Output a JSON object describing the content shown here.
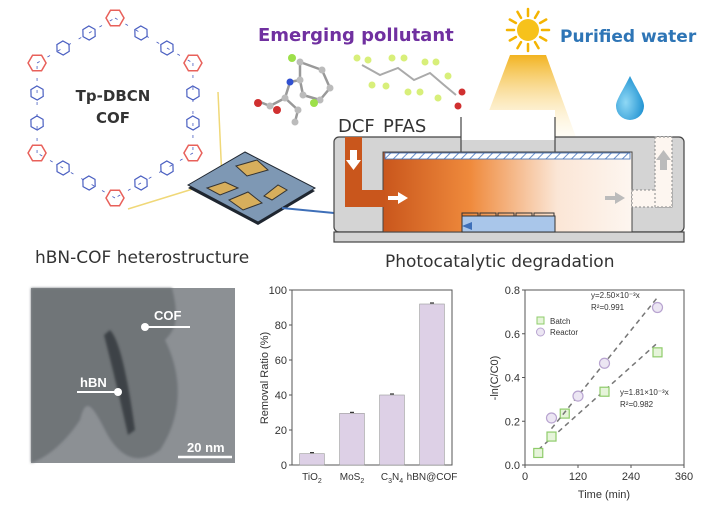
{
  "top_left": {
    "cof_label_line1": "Tp-DBCN",
    "cof_label_line2": "COF",
    "caption": "hBN-COF heterostructure"
  },
  "top_right": {
    "pollutant_title": "Emerging pollutant",
    "pollutant_1": "DCF",
    "pollutant_2": "PFAS",
    "purified_title": "Purified water",
    "caption": "Photocatalytic degradation"
  },
  "tem": {
    "label_cof": "COF",
    "label_hbn": "hBN",
    "scale_bar": "20 nm"
  },
  "colors": {
    "pollutant_title": "#7030a0",
    "purified_title": "#2e75b6",
    "cof_ring_red": "#e8605a",
    "cof_ring_blue": "#4a5fc1",
    "bar_fill": "#ddd0e6",
    "batch_marker": "#8fcc6b",
    "reactor_marker": "#b8a4d0"
  },
  "chart_data": [
    {
      "type": "bar",
      "title": "",
      "xlabel": "",
      "ylabel": "Removal Ratio (%)",
      "categories": [
        "TiO2",
        "MoS2",
        "C3N4",
        "hBN@COF"
      ],
      "category_labels": [
        [
          "TiO",
          "2",
          ""
        ],
        [
          "MoS",
          "2",
          ""
        ],
        [
          "C",
          "3",
          "N",
          "4"
        ],
        [
          "hBN@COF"
        ]
      ],
      "values": [
        6.5,
        29.5,
        40,
        92
      ],
      "error_bars": true,
      "ylim": [
        0,
        100
      ],
      "yticks": [
        0,
        20,
        40,
        60,
        80,
        100
      ],
      "grid": false
    },
    {
      "type": "scatter",
      "title": "",
      "xlabel": "Time (min)",
      "ylabel": "-ln(C/C0)",
      "xlim": [
        0,
        360
      ],
      "ylim": [
        0,
        0.8
      ],
      "xticks": [
        0,
        120,
        240,
        360
      ],
      "yticks": [
        "0.0",
        "0.2",
        "0.4",
        "0.6",
        "0.8"
      ],
      "grid": false,
      "legend_placement": "top-left",
      "series": [
        {
          "name": "Batch",
          "marker": "square",
          "x": [
            30,
            60,
            90,
            180,
            300
          ],
          "y": [
            0.055,
            0.13,
            0.235,
            0.335,
            0.515
          ],
          "fit_eq": "y=1.81×10⁻³x",
          "fit_r2": "R²=0.982",
          "slope": 0.00181
        },
        {
          "name": "Reactor",
          "marker": "circle",
          "x": [
            60,
            120,
            180,
            300
          ],
          "y": [
            0.215,
            0.315,
            0.465,
            0.72
          ],
          "fit_eq": "y=2.50×10⁻³x",
          "fit_r2": "R²=0.991",
          "slope": 0.0025
        }
      ]
    }
  ]
}
